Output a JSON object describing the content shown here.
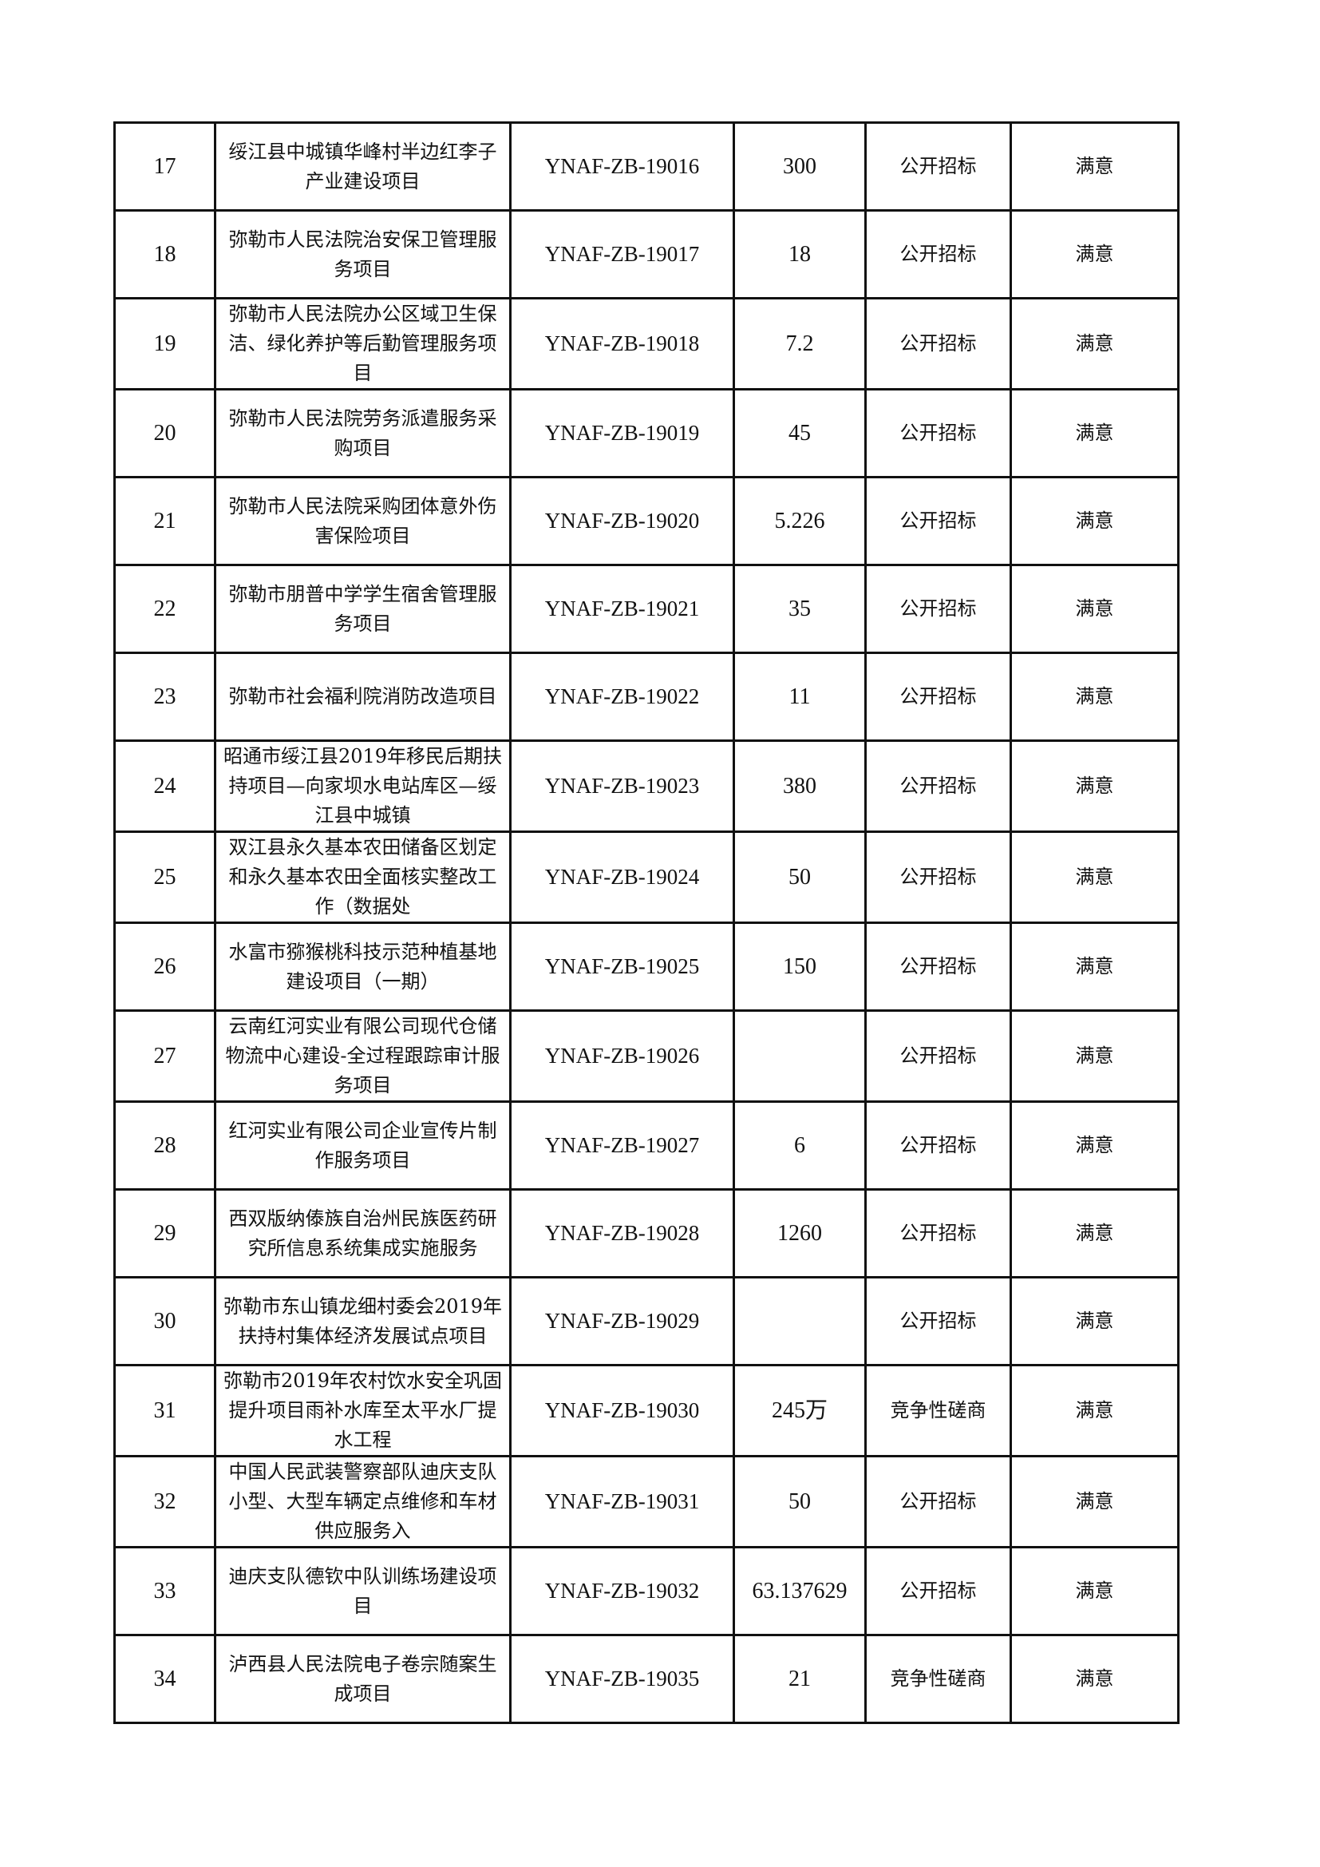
{
  "rows": [
    {
      "no": "17",
      "name": "绥江县中城镇华峰村半边红李子产业建设项目",
      "code": "YNAF-ZB-19016",
      "amount": "300",
      "method": "公开招标",
      "evaluation": "满意"
    },
    {
      "no": "18",
      "name": "弥勒市人民法院治安保卫管理服务项目",
      "code": "YNAF-ZB-19017",
      "amount": "18",
      "method": "公开招标",
      "evaluation": "满意"
    },
    {
      "no": "19",
      "name": "弥勒市人民法院办公区域卫生保洁、绿化养护等后勤管理服务项目",
      "code": "YNAF-ZB-19018",
      "amount": "7.2",
      "method": "公开招标",
      "evaluation": "满意"
    },
    {
      "no": "20",
      "name": "弥勒市人民法院劳务派遣服务采购项目",
      "code": "YNAF-ZB-19019",
      "amount": "45",
      "method": "公开招标",
      "evaluation": "满意"
    },
    {
      "no": "21",
      "name": "弥勒市人民法院采购团体意外伤害保险项目",
      "code": "YNAF-ZB-19020",
      "amount": "5.226",
      "method": "公开招标",
      "evaluation": "满意"
    },
    {
      "no": "22",
      "name": "弥勒市朋普中学学生宿舍管理服务项目",
      "code": "YNAF-ZB-19021",
      "amount": "35",
      "method": "公开招标",
      "evaluation": "满意"
    },
    {
      "no": "23",
      "name": "弥勒市社会福利院消防改造项目",
      "code": "YNAF-ZB-19022",
      "amount": "11",
      "method": "公开招标",
      "evaluation": "满意"
    },
    {
      "no": "24",
      "name": "昭通市绥江县2019年移民后期扶持项目—向家坝水电站库区—绥江县中城镇",
      "code": "YNAF-ZB-19023",
      "amount": "380",
      "method": "公开招标",
      "evaluation": "满意"
    },
    {
      "no": "25",
      "name": "双江县永久基本农田储备区划定和永久基本农田全面核实整改工作（数据处",
      "code": "YNAF-ZB-19024",
      "amount": "50",
      "method": "公开招标",
      "evaluation": "满意"
    },
    {
      "no": "26",
      "name": "水富市猕猴桃科技示范种植基地建设项目（一期）",
      "code": "YNAF-ZB-19025",
      "amount": "150",
      "method": "公开招标",
      "evaluation": "满意"
    },
    {
      "no": "27",
      "name": "云南红河实业有限公司现代仓储物流中心建设-全过程跟踪审计服务项目",
      "code": "YNAF-ZB-19026",
      "amount": "",
      "method": "公开招标",
      "evaluation": "满意"
    },
    {
      "no": "28",
      "name": "红河实业有限公司企业宣传片制作服务项目",
      "code": "YNAF-ZB-19027",
      "amount": "6",
      "method": "公开招标",
      "evaluation": "满意"
    },
    {
      "no": "29",
      "name": "西双版纳傣族自治州民族医药研究所信息系统集成实施服务",
      "code": "YNAF-ZB-19028",
      "amount": "1260",
      "method": "公开招标",
      "evaluation": "满意"
    },
    {
      "no": "30",
      "name": "弥勒市东山镇龙细村委会2019年扶持村集体经济发展试点项目",
      "code": "YNAF-ZB-19029",
      "amount": "",
      "method": "公开招标",
      "evaluation": "满意"
    },
    {
      "no": "31",
      "name": "弥勒市2019年农村饮水安全巩固提升项目雨补水库至太平水厂提水工程",
      "code": "YNAF-ZB-19030",
      "amount": "245万",
      "method": "竞争性磋商",
      "evaluation": "满意"
    },
    {
      "no": "32",
      "name": "中国人民武装警察部队迪庆支队小型、大型车辆定点维修和车材供应服务入",
      "code": "YNAF-ZB-19031",
      "amount": "50",
      "method": "公开招标",
      "evaluation": "满意"
    },
    {
      "no": "33",
      "name": "迪庆支队德钦中队训练场建设项目",
      "code": "YNAF-ZB-19032",
      "amount": "63.137629",
      "method": "公开招标",
      "evaluation": "满意"
    },
    {
      "no": "34",
      "name": "泸西县人民法院电子卷宗随案生成项目",
      "code": "YNAF-ZB-19035",
      "amount": "21",
      "method": "竞争性磋商",
      "evaluation": "满意"
    }
  ]
}
